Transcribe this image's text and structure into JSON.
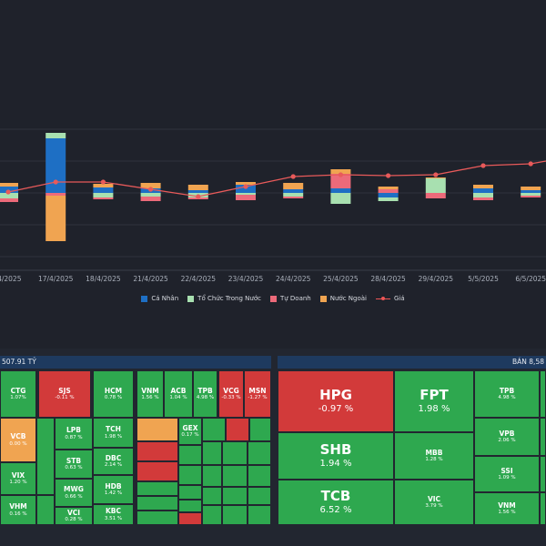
{
  "chart_data": {
    "type": "bar",
    "categories": [
      "",
      "17/4/2025",
      "18/4/2025",
      "21/4/2025",
      "22/4/2025",
      "23/4/2025",
      "24/4/2025",
      "25/4/2025",
      "28/4/2025",
      "29/4/2025",
      "5/5/2025",
      "6/5/2025"
    ],
    "xlabels": [
      "/4/2025",
      "17/4/2025",
      "18/4/2025",
      "21/4/2025",
      "22/4/2025",
      "23/4/2025",
      "24/4/2025",
      "25/4/2025",
      "28/4/2025",
      "29/4/2025",
      "5/5/2025",
      "6/5/2025"
    ],
    "stacked": true,
    "series": [
      {
        "name": "Cá Nhân",
        "color": "#1e6fc4",
        "values": [
          7,
          60,
          6,
          5,
          3,
          9,
          4,
          5,
          -5,
          0,
          5,
          3
        ]
      },
      {
        "name": "Tổ Chức Trong Nước",
        "color": "#a8e0b0",
        "values": [
          -6,
          6,
          -5,
          -4,
          -5,
          -2,
          -4,
          -12,
          -4,
          16,
          -5,
          -3
        ]
      },
      {
        "name": "Tự Doanh",
        "color": "#ec6a7a",
        "values": [
          -4,
          -3,
          -2,
          -5,
          -2,
          -6,
          -2,
          16,
          4,
          -6,
          -3,
          -2
        ]
      },
      {
        "name": "Nước Ngoài",
        "color": "#f0a451",
        "values": [
          4,
          -50,
          4,
          6,
          6,
          3,
          7,
          5,
          3,
          1,
          4,
          4
        ]
      }
    ],
    "price": {
      "name": "Giá",
      "color": "#e85a5a",
      "values": [
        1,
        12,
        12,
        4,
        -4,
        7,
        18,
        20,
        19,
        20,
        30,
        32
      ]
    },
    "ylim": [
      -70,
      70
    ],
    "grid": true,
    "legend": "bottom"
  },
  "legend": [
    {
      "name": "Cá Nhân",
      "color": "#1e6fc4"
    },
    {
      "name": "Tổ Chức Trong Nước",
      "color": "#a8e0b0"
    },
    {
      "name": "Tự Doanh",
      "color": "#ec6a7a"
    },
    {
      "name": "Nước Ngoài",
      "color": "#f0a451"
    }
  ],
  "price_legend": "Giá",
  "buy_panel": {
    "header": "507.91 TỶ",
    "cells": [
      {
        "ticker": "CTG",
        "pct": "1.07%",
        "c": "g"
      },
      {
        "ticker": "SJS",
        "pct": "-0.11 %",
        "c": "r"
      },
      {
        "ticker": "HCM",
        "pct": "0.78 %",
        "c": "g"
      },
      {
        "ticker": "VNM",
        "pct": "1.56 %",
        "c": "g"
      },
      {
        "ticker": "ACB",
        "pct": "1.04 %",
        "c": "g"
      },
      {
        "ticker": "TPB",
        "pct": "4.98 %",
        "c": "g"
      },
      {
        "ticker": "VCG",
        "pct": "-0.33 %",
        "c": "r"
      },
      {
        "ticker": "MSN",
        "pct": "-1.27 %",
        "c": "r"
      },
      {
        "ticker": "VCB",
        "pct": "0.00 %",
        "c": "o"
      },
      {
        "ticker": "LPB",
        "pct": "0.87 %",
        "c": "g"
      },
      {
        "ticker": "TCH",
        "pct": "1.98 %",
        "c": "g"
      },
      {
        "ticker": "VIX",
        "pct": "1.20 %",
        "c": "g"
      },
      {
        "ticker": "STB",
        "pct": "0.63 %",
        "c": "g"
      },
      {
        "ticker": "DBC",
        "pct": "2.14 %",
        "c": "g"
      },
      {
        "ticker": "GEX",
        "pct": "0.17 %",
        "c": "g"
      },
      {
        "ticker": "VHM",
        "pct": "0.16 %",
        "c": "g"
      },
      {
        "ticker": "MWG",
        "pct": "0.66 %",
        "c": "g"
      },
      {
        "ticker": "HDB",
        "pct": "1.42 %",
        "c": "g"
      },
      {
        "ticker": "VCI",
        "pct": "0.28 %",
        "c": "g"
      },
      {
        "ticker": "KBC",
        "pct": "3.51 %",
        "c": "g"
      }
    ]
  },
  "sell_panel": {
    "header": "BÁN 8,58",
    "cells": [
      {
        "ticker": "HPG",
        "pct": "-0.97 %",
        "c": "r"
      },
      {
        "ticker": "FPT",
        "pct": "1.98 %",
        "c": "g"
      },
      {
        "ticker": "TPB",
        "pct": "4.98 %",
        "c": "g"
      },
      {
        "ticker": "VPB",
        "pct": "2.06 %",
        "c": "g"
      },
      {
        "ticker": "SHB",
        "pct": "1.94 %",
        "c": "g"
      },
      {
        "ticker": "MBB",
        "pct": "1.28 %",
        "c": "g"
      },
      {
        "ticker": "SSI",
        "pct": "1.09 %",
        "c": "g"
      },
      {
        "ticker": "TCB",
        "pct": "6.52 %",
        "c": "g"
      },
      {
        "ticker": "VIC",
        "pct": "3.79 %",
        "c": "g"
      },
      {
        "ticker": "VNM",
        "pct": "1.56 %",
        "c": "g"
      }
    ]
  }
}
